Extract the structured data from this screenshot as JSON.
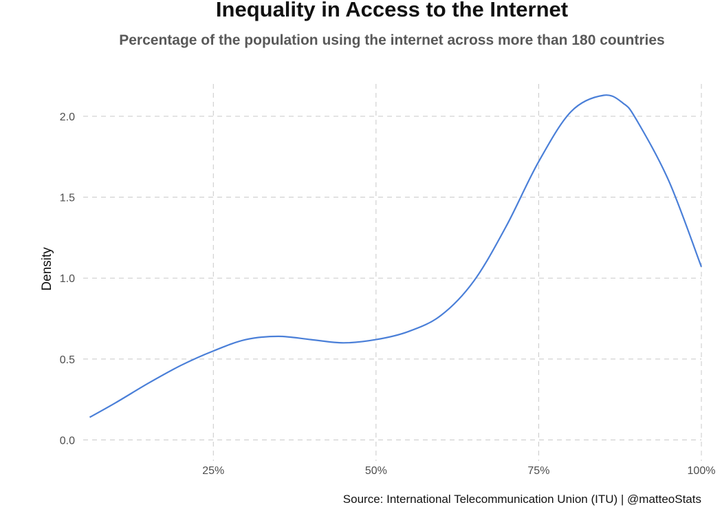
{
  "chart_data": {
    "type": "area",
    "title": "Inequality in Access to the Internet",
    "subtitle": "Percentage of the population using the internet across more than 180 countries",
    "xlabel": "",
    "ylabel": "Density",
    "xlim": [
      0.05,
      1.0
    ],
    "ylim": [
      -0.13,
      2.2
    ],
    "xticks": [
      0.25,
      0.5,
      0.75,
      1.0
    ],
    "xtick_labels": [
      "25%",
      "50%",
      "75%",
      "100%"
    ],
    "yticks": [
      0.0,
      0.5,
      1.0,
      1.5,
      2.0
    ],
    "ytick_labels": [
      "0.0",
      "0.5",
      "1.0",
      "1.5",
      "2.0"
    ],
    "grid": true,
    "grid_style": "dashed",
    "line_color": "#4a7fd8",
    "caption": "Source: International Telecommunication Union (ITU) | @matteoStats",
    "series": [
      {
        "x": [
          0.06,
          0.1,
          0.15,
          0.2,
          0.25,
          0.3,
          0.35,
          0.4,
          0.45,
          0.5,
          0.55,
          0.6,
          0.65,
          0.7,
          0.75,
          0.8,
          0.85,
          0.88,
          0.9,
          0.95,
          1.0
        ],
        "y": [
          0.14,
          0.23,
          0.35,
          0.46,
          0.55,
          0.62,
          0.64,
          0.62,
          0.6,
          0.62,
          0.67,
          0.77,
          0.98,
          1.32,
          1.72,
          2.03,
          2.13,
          2.08,
          1.98,
          1.6,
          1.07
        ]
      }
    ]
  }
}
